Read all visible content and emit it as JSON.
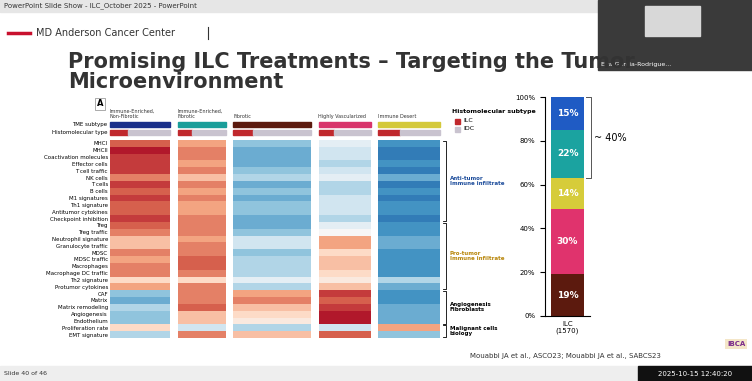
{
  "window": {
    "title": "PowerPoint Slide Show - ILC_October 2025 - PowerPoint",
    "webcam_name": "Eva Garcia-Rodrigue...",
    "slide_counter": "Slide 40 of 46",
    "timestamp": "2025-10-15 12:40:20"
  },
  "slide": {
    "header": "MD Anderson Cancer Center",
    "title": "Promising ILC Treatments – Targeting the Tumor\nMicroenvironment",
    "panel": "A",
    "citation": "Mouabbi JA et al., ASCO23; Mouabbi JA et al., SABCS23",
    "logo": "IBCA"
  },
  "heatmap": {
    "annotation_rows": [
      "TME subtype",
      "Histomolecular type"
    ],
    "columns": [
      {
        "name": "Immune-Enriched,\nNon-Fibrotic",
        "color": "#1a2f8a",
        "ilc_fraction": 0.3
      },
      {
        "name": "Immune-Enriched,\nFibrotic",
        "color": "#1a9e9a",
        "ilc_fraction": 0.3
      },
      {
        "name": "Fibrotic",
        "color": "#5c1a0e",
        "ilc_fraction": 0.25
      },
      {
        "name": "Highly Vascularized",
        "color": "#d8346b",
        "ilc_fraction": 0.3
      },
      {
        "name": "Immune Desert",
        "color": "#d4c93a",
        "ilc_fraction": 0.35
      }
    ],
    "color_range": [
      -1,
      1
    ],
    "legend": {
      "title": "Histomolecular subtype",
      "entries": [
        {
          "name": "ILC",
          "color": "#c0282d"
        },
        {
          "name": "IDC",
          "color": "#c9c3cf"
        }
      ]
    },
    "groups": [
      {
        "name": "Anti-tumor\nImmune infiltrate",
        "color": "#1f4e9c",
        "rows": [
          "MHCI",
          "MHCII",
          "Coactivation molecules",
          "Effector cells",
          "T cell traffic",
          "NK cells",
          "T cells",
          "B cells",
          "M1 signatures",
          "Th1 signature",
          "Antitumor cytokines",
          "Checkpoint inhibition"
        ],
        "cells": [
          [
            0.6,
            0.4,
            -0.4,
            -0.1,
            -0.6
          ],
          [
            0.8,
            0.5,
            -0.5,
            -0.2,
            -0.7
          ],
          [
            0.7,
            0.5,
            -0.5,
            -0.2,
            -0.7
          ],
          [
            0.7,
            0.4,
            -0.5,
            -0.3,
            -0.6
          ],
          [
            0.7,
            0.5,
            -0.4,
            -0.2,
            -0.7
          ],
          [
            0.5,
            0.3,
            -0.3,
            -0.1,
            -0.5
          ],
          [
            0.7,
            0.5,
            -0.5,
            -0.3,
            -0.7
          ],
          [
            0.6,
            0.4,
            -0.4,
            -0.3,
            -0.6
          ],
          [
            0.7,
            0.5,
            -0.5,
            -0.2,
            -0.7
          ],
          [
            0.6,
            0.4,
            -0.4,
            -0.2,
            -0.6
          ],
          [
            0.6,
            0.4,
            -0.4,
            -0.2,
            -0.6
          ],
          [
            0.7,
            0.5,
            -0.5,
            -0.3,
            -0.7
          ]
        ]
      },
      {
        "name": "Pro-tumor\nImmune infiltrate",
        "color": "#b8860b",
        "rows": [
          "Treg",
          "Treg traffic",
          "Neutrophil signature",
          "Granulocyte traffic",
          "MDSC",
          "MDSC traffic",
          "Macrophages",
          "Macrophage DC traffic",
          "Th2 signature",
          "Protumor cytokines"
        ],
        "cells": [
          [
            0.6,
            0.5,
            -0.5,
            -0.1,
            -0.6
          ],
          [
            0.5,
            0.5,
            -0.4,
            0.0,
            -0.6
          ],
          [
            0.3,
            0.4,
            -0.2,
            0.4,
            -0.5
          ],
          [
            0.3,
            0.5,
            -0.2,
            0.4,
            -0.5
          ],
          [
            0.5,
            0.5,
            -0.4,
            0.2,
            -0.6
          ],
          [
            0.4,
            0.6,
            -0.3,
            0.3,
            -0.6
          ],
          [
            0.5,
            0.6,
            -0.3,
            0.3,
            -0.6
          ],
          [
            0.5,
            0.5,
            -0.3,
            0.2,
            -0.6
          ],
          [
            0.2,
            0.2,
            -0.1,
            0.1,
            -0.3
          ],
          [
            0.4,
            0.5,
            -0.3,
            0.3,
            -0.5
          ]
        ]
      },
      {
        "name": "Angiogenesis\nFibroblasts",
        "color": "#000000",
        "rows": [
          "CAF",
          "Matrix",
          "Matrix remodeling",
          "Angiogenesis",
          "Endothelium"
        ],
        "cells": [
          [
            -0.4,
            0.5,
            0.4,
            0.7,
            -0.6
          ],
          [
            -0.5,
            0.5,
            0.5,
            0.6,
            -0.6
          ],
          [
            -0.3,
            0.6,
            0.3,
            0.7,
            -0.5
          ],
          [
            -0.4,
            0.3,
            0.2,
            0.8,
            -0.5
          ],
          [
            -0.4,
            0.3,
            0.1,
            0.8,
            -0.5
          ]
        ]
      },
      {
        "name": "Malignant cells\nbiology",
        "color": "#000000",
        "rows": [
          "Proliferation rate",
          "EMT signature"
        ],
        "cells": [
          [
            0.2,
            -0.2,
            -0.3,
            -0.2,
            0.4
          ],
          [
            -0.3,
            0.5,
            0.3,
            0.6,
            -0.4
          ]
        ]
      }
    ]
  },
  "chart_data": {
    "type": "bar",
    "stacked": true,
    "data_labels": true,
    "categories": [
      "ILC\n(1570)"
    ],
    "series": [
      {
        "color": "#5c1a0e",
        "values": [
          19
        ],
        "value_labels": [
          "19%"
        ]
      },
      {
        "color": "#e0336d",
        "values": [
          30
        ],
        "value_labels": [
          "30%"
        ]
      },
      {
        "color": "#d6cc3a",
        "values": [
          14
        ],
        "value_labels": [
          "14%"
        ]
      },
      {
        "color": "#1ba3a0",
        "values": [
          22
        ],
        "value_labels": [
          "22%"
        ]
      },
      {
        "color": "#1f5bc4",
        "values": [
          15
        ],
        "value_labels": [
          "15%"
        ]
      }
    ],
    "ylim": [
      0,
      100
    ],
    "yticks": [
      {
        "value": 0,
        "label": "0%"
      },
      {
        "value": 20,
        "label": "20%"
      },
      {
        "value": 40,
        "label": "40%"
      },
      {
        "value": 60,
        "label": "60%"
      },
      {
        "value": 80,
        "label": "80%"
      },
      {
        "value": 100,
        "label": "100%"
      }
    ],
    "annotation": "~ 40%"
  }
}
